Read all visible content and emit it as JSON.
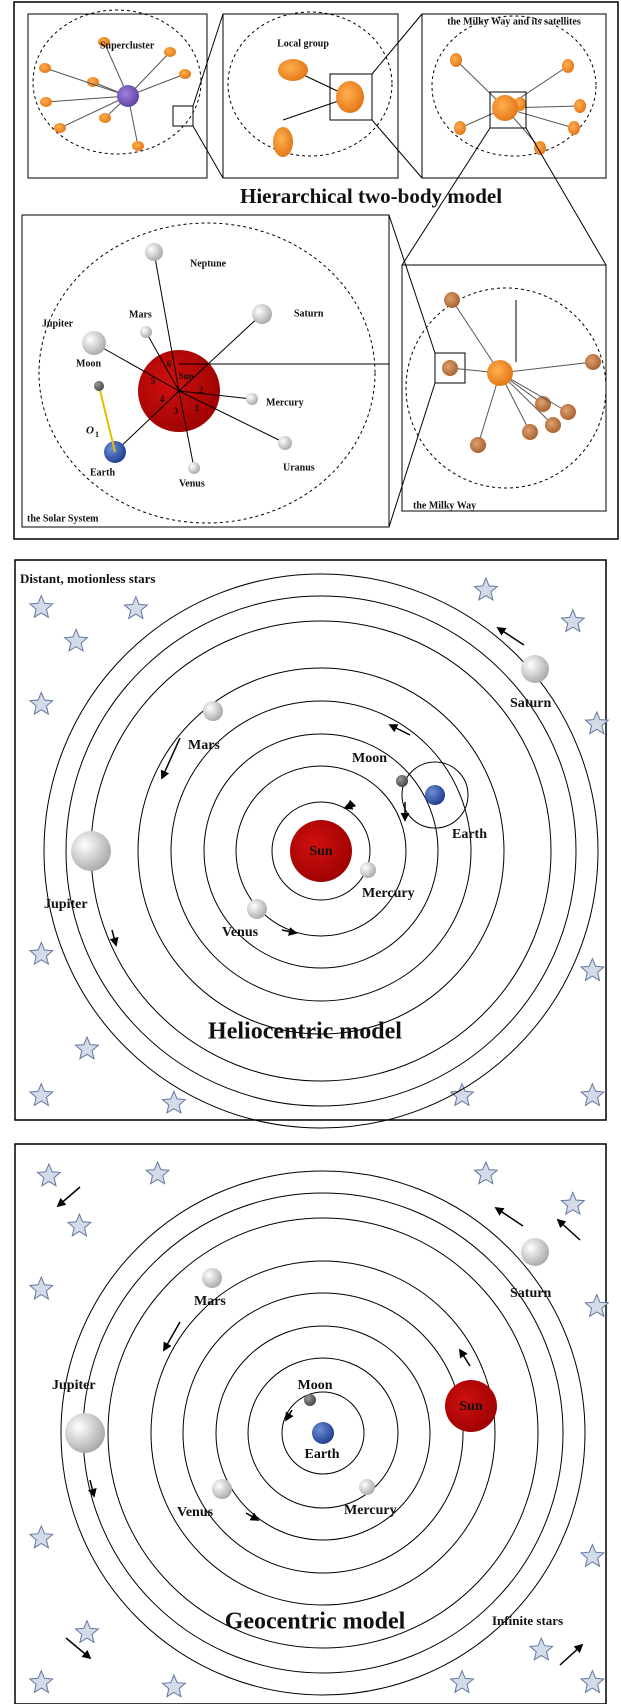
{
  "hierarchical": {
    "title": "Hierarchical two-body model",
    "supercluster": "Supercluster",
    "local_group": "Local group",
    "milky_way_satellites": "the Milky Way and its satellites",
    "milky_way": "the Milky Way",
    "solar_system": {
      "label": "the Solar System",
      "sun": "Sun",
      "neptune": "Neptune",
      "saturn": "Saturn",
      "mars": "Mars",
      "jupiter": "Jupiter",
      "moon": "Moon",
      "mercury": "Mercury",
      "earth": "Earth",
      "venus": "Venus",
      "uranus": "Uranus",
      "o1": "O",
      "o1_sub": "1",
      "numbers": [
        "1",
        "2",
        "3",
        "4",
        "5",
        "6"
      ]
    }
  },
  "heliocentric": {
    "title": "Heliocentric model",
    "caption": "Distant, motionless stars",
    "sun": "Sun",
    "mercury": "Mercury",
    "venus": "Venus",
    "earth": "Earth",
    "moon": "Moon",
    "mars": "Mars",
    "jupiter": "Jupiter",
    "saturn": "Saturn"
  },
  "geocentric": {
    "title": "Geocentric model",
    "caption": "Infinite stars",
    "earth": "Earth",
    "moon": "Moon",
    "mercury": "Mercury",
    "venus": "Venus",
    "sun": "Sun",
    "mars": "Mars",
    "jupiter": "Jupiter",
    "saturn": "Saturn"
  }
}
